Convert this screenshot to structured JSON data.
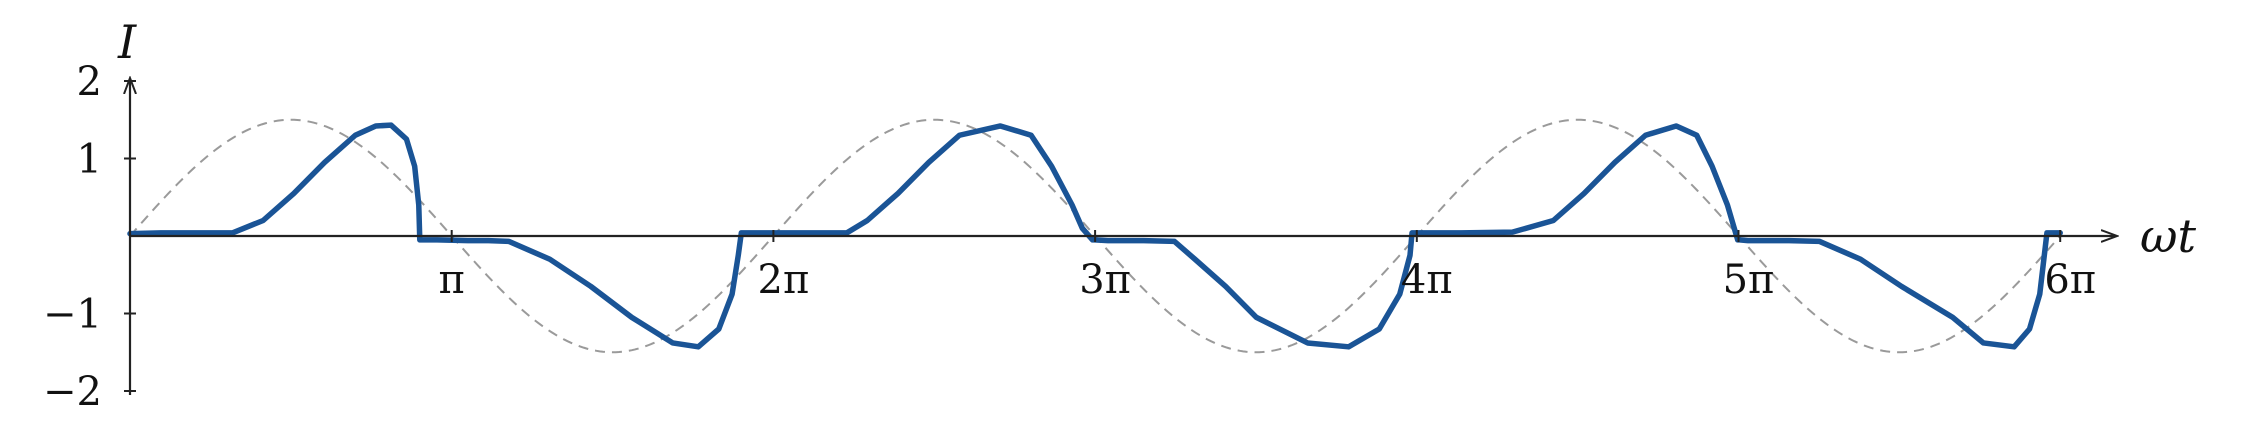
{
  "chart_data": {
    "type": "line",
    "xlabel": "ωt",
    "ylabel": "I",
    "xlim": [
      0,
      18.85
    ],
    "ylim": [
      -2,
      2
    ],
    "grid": false,
    "legend": "none",
    "x_ticks": [
      {
        "value": 3.1416,
        "label": "π"
      },
      {
        "value": 6.2832,
        "label": "2π"
      },
      {
        "value": 9.4248,
        "label": "3π"
      },
      {
        "value": 12.5664,
        "label": "4π"
      },
      {
        "value": 15.708,
        "label": "5π"
      },
      {
        "value": 18.8496,
        "label": "6π"
      }
    ],
    "y_ticks": [
      {
        "value": 2,
        "label": "2"
      },
      {
        "value": 1,
        "label": "1"
      },
      {
        "value": -1,
        "label": "−1"
      },
      {
        "value": -2,
        "label": "−2"
      }
    ],
    "series": [
      {
        "style": "solid",
        "color": "#1a5496",
        "x": [
          0.0,
          0.3,
          0.6,
          0.85,
          1.0,
          1.3,
          1.6,
          1.9,
          2.2,
          2.4,
          2.55,
          2.7,
          2.78,
          2.82,
          2.83,
          3.0,
          3.3,
          3.5,
          3.7,
          4.1,
          4.5,
          4.9,
          5.3,
          5.55,
          5.75,
          5.88,
          5.94,
          5.97,
          5.98,
          6.3,
          6.6,
          7.0,
          7.2,
          7.5,
          7.8,
          8.1,
          8.5,
          8.8,
          9.0,
          9.2,
          9.3,
          9.4,
          9.42,
          9.55,
          9.9,
          10.2,
          10.4,
          10.7,
          11.0,
          11.5,
          11.9,
          12.2,
          12.4,
          12.5,
          12.52,
          12.56,
          13.0,
          13.5,
          13.9,
          14.2,
          14.5,
          14.8,
          15.1,
          15.3,
          15.45,
          15.6,
          15.7,
          15.72,
          15.8,
          16.2,
          16.5,
          16.9,
          17.3,
          17.8,
          18.1,
          18.4,
          18.55,
          18.65,
          18.72,
          18.85
        ],
        "y": [
          0.03,
          0.04,
          0.04,
          0.04,
          0.04,
          0.2,
          0.55,
          0.95,
          1.3,
          1.42,
          1.43,
          1.25,
          0.9,
          0.4,
          -0.05,
          -0.05,
          -0.06,
          -0.06,
          -0.07,
          -0.3,
          -0.65,
          -1.05,
          -1.38,
          -1.43,
          -1.2,
          -0.75,
          -0.25,
          0.04,
          0.04,
          0.04,
          0.04,
          0.04,
          0.2,
          0.55,
          0.95,
          1.3,
          1.42,
          1.3,
          0.9,
          0.4,
          0.1,
          -0.05,
          -0.05,
          -0.06,
          -0.06,
          -0.07,
          -0.3,
          -0.65,
          -1.05,
          -1.38,
          -1.43,
          -1.2,
          -0.75,
          -0.25,
          0.04,
          0.04,
          0.04,
          0.05,
          0.2,
          0.55,
          0.95,
          1.3,
          1.42,
          1.3,
          0.9,
          0.4,
          -0.05,
          -0.05,
          -0.06,
          -0.06,
          -0.07,
          -0.3,
          -0.65,
          -1.05,
          -1.38,
          -1.43,
          -1.2,
          -0.75,
          0.04,
          0.04
        ]
      },
      {
        "style": "dashed",
        "color": "#9a9a9a",
        "function": "1.5*sin(x)",
        "x_range": [
          0,
          18.85
        ],
        "amplitude": 1.5
      }
    ]
  }
}
